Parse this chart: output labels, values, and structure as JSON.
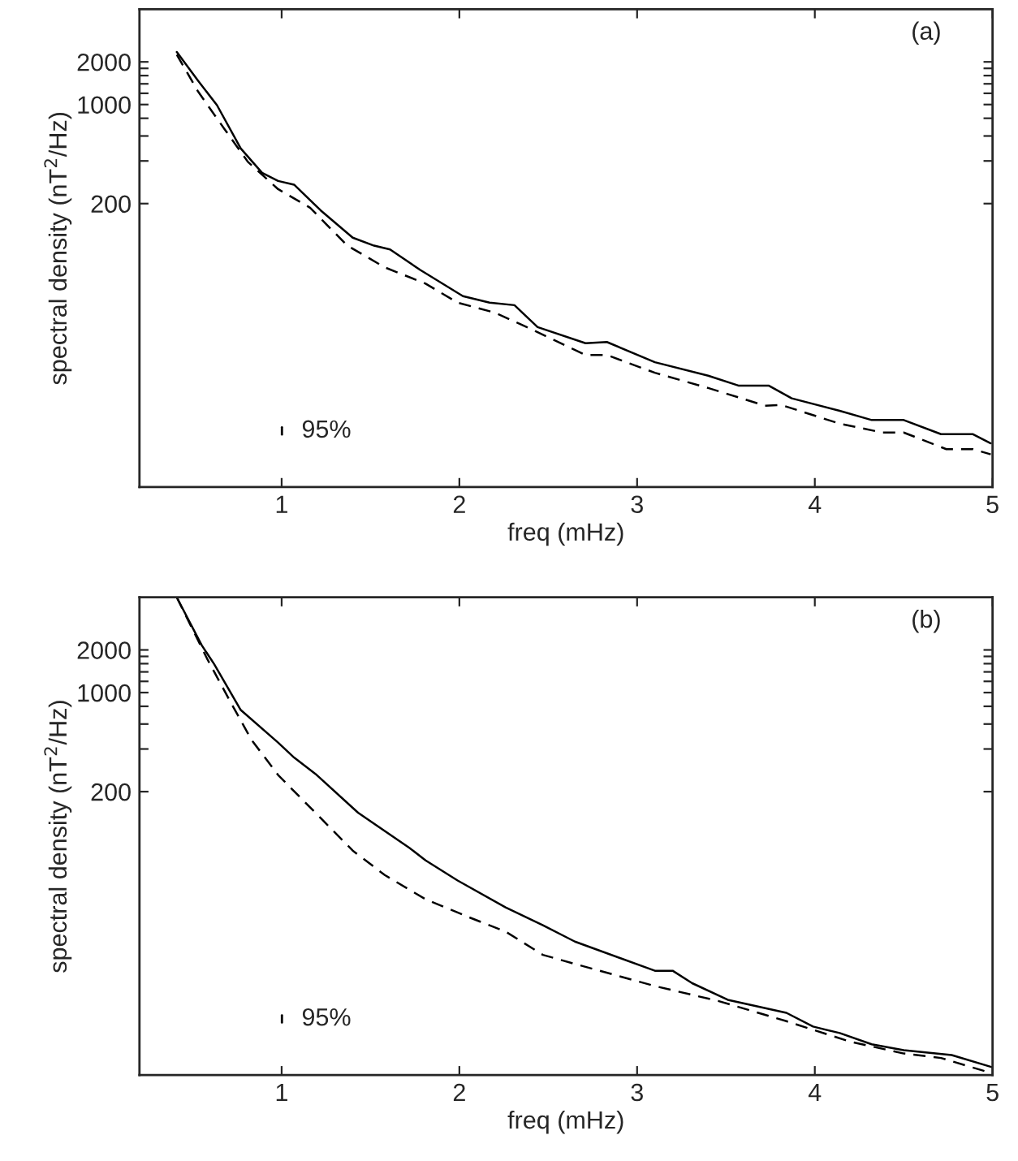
{
  "chart_data": [
    {
      "type": "line",
      "xlabel": "freq (mHz)",
      "ylabel": "spectral density (nT$^{2}$/Hz)",
      "log": "y",
      "xlim": [
        0.2,
        5
      ],
      "xticks": [
        1,
        2,
        3,
        4,
        5
      ],
      "ylim": [
        2,
        4700
      ],
      "yticks": [
        200,
        {
          "value": 400,
          "label": null
        },
        {
          "value": 600,
          "label": null
        },
        {
          "value": 800,
          "label": null
        },
        1000,
        {
          "value": 1200,
          "label": null
        },
        {
          "value": 1400,
          "label": null
        },
        {
          "value": 1600,
          "label": null
        },
        {
          "value": 1800,
          "label": null
        },
        2000
      ],
      "grid": false,
      "legend": false,
      "annotations": [
        "(a)",
        "95%"
      ],
      "series": [
        {
          "color": "#000000",
          "line_style": "solid",
          "x": [
            0.41,
            0.53,
            0.636,
            0.77,
            0.89,
            0.98,
            1.07,
            1.22,
            1.4,
            1.52,
            1.61,
            1.78,
            2.02,
            2.17,
            2.31,
            2.44,
            2.71,
            2.83,
            3.1,
            3.4,
            3.57,
            3.74,
            3.87,
            4.14,
            4.32,
            4.5,
            4.71,
            4.89,
            4.99
          ],
          "values": [
            2350,
            1470,
            990,
            490,
            330,
            289,
            272,
            179,
            115,
            101,
            95,
            68,
            44.5,
            40,
            38.4,
            26.9,
            20.7,
            21.1,
            15.2,
            12.2,
            10.4,
            10.4,
            8.45,
            6.9,
            5.94,
            5.94,
            4.72,
            4.72,
            4.07
          ]
        },
        {
          "color": "#000000",
          "line_style": "dashed",
          "x": [
            0.41,
            0.53,
            0.68,
            0.81,
            0.98,
            1.16,
            1.37,
            1.58,
            1.81,
            1.99,
            2.2,
            2.41,
            2.71,
            2.83,
            3.1,
            3.4,
            3.72,
            3.81,
            4.14,
            4.38,
            4.5,
            4.74,
            4.89,
            4.99
          ],
          "values": [
            2250,
            1234,
            667,
            394,
            253,
            187,
            101,
            71,
            54.5,
            40,
            34,
            25.8,
            17.1,
            17.1,
            12.8,
            10,
            7.5,
            7.6,
            5.6,
            4.85,
            4.85,
            3.7,
            3.7,
            3.4
          ]
        }
      ]
    },
    {
      "type": "line",
      "xlabel": "freq (mHz)",
      "ylabel": "spectral density (nT$^{2}$/Hz)",
      "log": "y",
      "xlim": [
        0.2,
        5
      ],
      "xticks": [
        1,
        2,
        3,
        4,
        5
      ],
      "ylim": [
        2,
        4700
      ],
      "yticks": [
        200,
        {
          "value": 400,
          "label": null
        },
        {
          "value": 600,
          "label": null
        },
        {
          "value": 800,
          "label": null
        },
        1000,
        {
          "value": 1200,
          "label": null
        },
        {
          "value": 1400,
          "label": null
        },
        {
          "value": 1600,
          "label": null
        },
        {
          "value": 1800,
          "label": null
        },
        2000
      ],
      "grid": false,
      "legend": false,
      "annotations": [
        "(b)",
        "95%"
      ],
      "series": [
        {
          "color": "#000000",
          "line_style": "solid",
          "x": [
            0.41,
            0.55,
            0.62,
            0.77,
            0.98,
            1.07,
            1.19,
            1.43,
            1.72,
            1.81,
            1.99,
            2.26,
            2.47,
            2.65,
            3.1,
            3.2,
            3.31,
            3.51,
            3.84,
            3.99,
            4.14,
            4.32,
            4.5,
            4.77,
            5.0
          ],
          "values": [
            4700,
            2160,
            1590,
            753,
            444,
            348,
            267,
            142,
            80,
            65.5,
            47.2,
            30.5,
            22.8,
            17.5,
            10.9,
            10.9,
            8.9,
            6.8,
            5.5,
            4.4,
            3.96,
            3.3,
            3.0,
            2.77,
            2.27
          ]
        },
        {
          "color": "#000000",
          "line_style": "dashed",
          "x": [
            0.41,
            0.58,
            0.72,
            0.83,
            0.98,
            1.22,
            1.4,
            1.58,
            1.81,
            2.05,
            2.26,
            2.47,
            2.71,
            3.1,
            3.46,
            3.84,
            4.2,
            4.5,
            4.71,
            4.98
          ],
          "values": [
            4700,
            1740,
            824,
            465,
            262,
            130,
            76.7,
            51.6,
            34.8,
            26.1,
            20.6,
            14.1,
            11.6,
            8.5,
            6.65,
            4.8,
            3.44,
            2.84,
            2.64,
            2.09
          ]
        }
      ]
    }
  ]
}
